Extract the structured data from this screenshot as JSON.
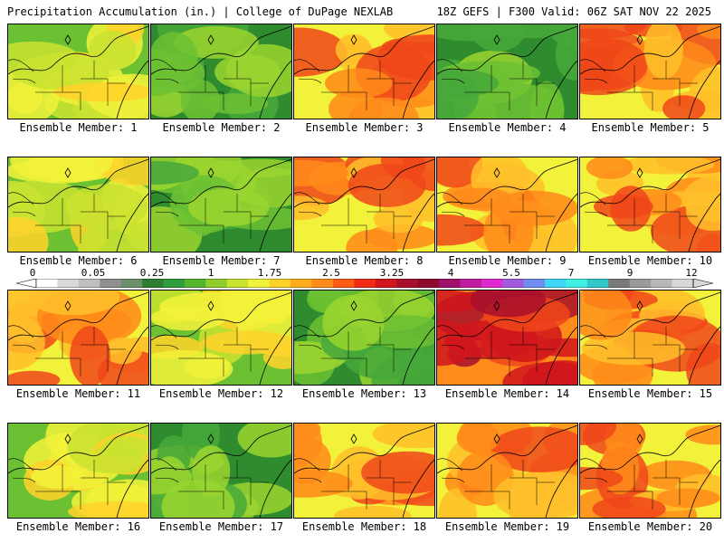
{
  "header": {
    "title": "Precipitation Accumulation (in.) | College of DuPage NEXLAB",
    "run_info": "18Z GEFS | F300 Valid: 06Z SAT NOV 22 2025"
  },
  "panels": [
    {
      "label": "Ensemble Member: 1",
      "intensity": 2
    },
    {
      "label": "Ensemble Member: 2",
      "intensity": 1
    },
    {
      "label": "Ensemble Member: 3",
      "intensity": 3
    },
    {
      "label": "Ensemble Member: 4",
      "intensity": 1
    },
    {
      "label": "Ensemble Member: 5",
      "intensity": 3
    },
    {
      "label": "Ensemble Member: 6",
      "intensity": 2
    },
    {
      "label": "Ensemble Member: 7",
      "intensity": 1
    },
    {
      "label": "Ensemble Member: 8",
      "intensity": 3
    },
    {
      "label": "Ensemble Member: 9",
      "intensity": 3
    },
    {
      "label": "Ensemble Member: 10",
      "intensity": 3
    },
    {
      "label": "Ensemble Member: 11",
      "intensity": 3
    },
    {
      "label": "Ensemble Member: 12",
      "intensity": 2
    },
    {
      "label": "Ensemble Member: 13",
      "intensity": 1
    },
    {
      "label": "Ensemble Member: 14",
      "intensity": 4
    },
    {
      "label": "Ensemble Member: 15",
      "intensity": 3
    },
    {
      "label": "Ensemble Member: 16",
      "intensity": 2
    },
    {
      "label": "Ensemble Member: 17",
      "intensity": 1
    },
    {
      "label": "Ensemble Member: 18",
      "intensity": 3
    },
    {
      "label": "Ensemble Member: 19",
      "intensity": 3
    },
    {
      "label": "Ensemble Member: 20",
      "intensity": 3
    }
  ],
  "colorbar": {
    "labels": [
      "0",
      "0.05",
      "0.25",
      "1",
      "1.75",
      "2.5",
      "3.25",
      "4",
      "5.5",
      "7",
      "9",
      "12"
    ],
    "colors": [
      "#ffffff",
      "#d9d9d9",
      "#bfbfbf",
      "#8f8f8f",
      "#6b8f6b",
      "#2e7d32",
      "#2f9e3a",
      "#55b52f",
      "#8fce2c",
      "#c9e330",
      "#f2f23a",
      "#ffd22a",
      "#ffad1f",
      "#ff8b1a",
      "#ff5b14",
      "#f02b16",
      "#d0151c",
      "#a80f2c",
      "#8b0a2e",
      "#a0106a",
      "#c01ca0",
      "#e02ad0",
      "#a15be0",
      "#6f8cf0",
      "#40d6f8",
      "#40f0e0",
      "#30c8c8",
      "#7a7a7a",
      "#9a9a9a",
      "#b8b8b8",
      "#d8d8d8"
    ]
  }
}
